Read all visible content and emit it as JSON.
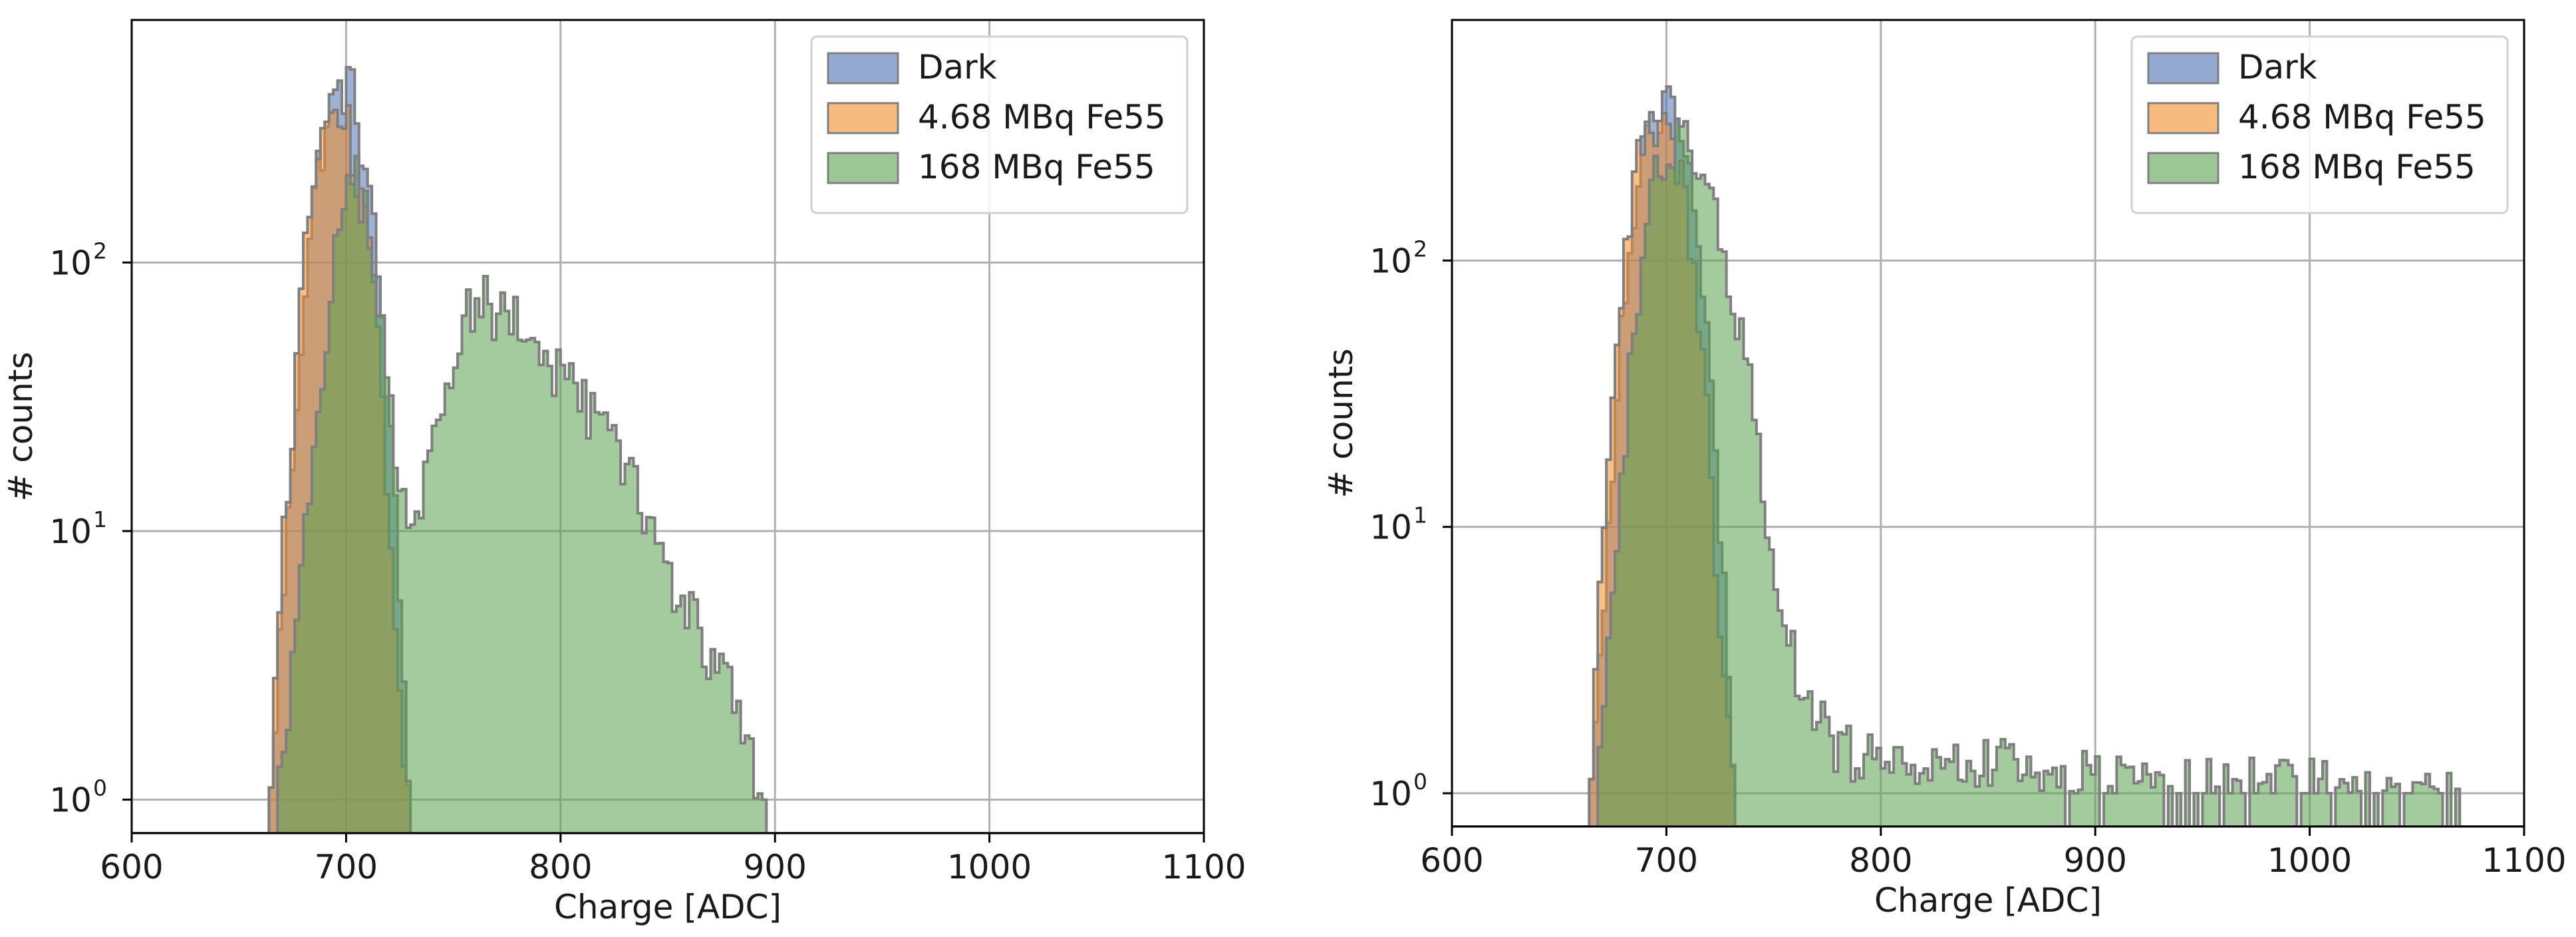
{
  "chart_data": [
    {
      "type": "histogram",
      "xlabel": "Charge [ADC]",
      "ylabel": "# counts",
      "yscale": "log",
      "xlim": [
        600,
        1100
      ],
      "ylim": [
        0.75,
        800
      ],
      "xticks": [
        "600",
        "700",
        "800",
        "900",
        "1000",
        "1100"
      ],
      "yticks": [
        {
          "base": "10",
          "exp": "0",
          "value": 1
        },
        {
          "base": "10",
          "exp": "1",
          "value": 10
        },
        {
          "base": "10",
          "exp": "2",
          "value": 100
        }
      ],
      "grid": true,
      "legend": "top-right",
      "series": [
        {
          "name": "Dark",
          "color": "#4c72b0",
          "points": [
            [
              665,
              1
            ],
            [
              668,
              3
            ],
            [
              672,
              8
            ],
            [
              676,
              25
            ],
            [
              680,
              70
            ],
            [
              684,
              150
            ],
            [
              688,
              260
            ],
            [
              692,
              360
            ],
            [
              696,
              420
            ],
            [
              700,
              470
            ],
            [
              703,
              430
            ],
            [
              706,
              330
            ],
            [
              710,
              200
            ],
            [
              714,
              110
            ],
            [
              718,
              50
            ],
            [
              722,
              16
            ],
            [
              726,
              4
            ],
            [
              730,
              1
            ]
          ]
        },
        {
          "name": "4.68 MBq Fe55",
          "color": "#f28e2b",
          "points": [
            [
              665,
              1
            ],
            [
              668,
              4
            ],
            [
              672,
              12
            ],
            [
              676,
              35
            ],
            [
              680,
              90
            ],
            [
              684,
              180
            ],
            [
              688,
              280
            ],
            [
              692,
              330
            ],
            [
              696,
              360
            ],
            [
              700,
              340
            ],
            [
              703,
              280
            ],
            [
              706,
              200
            ],
            [
              710,
              120
            ],
            [
              714,
              60
            ],
            [
              718,
              22
            ],
            [
              722,
              6
            ],
            [
              726,
              2
            ],
            [
              730,
              1
            ]
          ]
        },
        {
          "name": "168 MBq Fe55",
          "color": "#59a14f",
          "points": [
            [
              668,
              1
            ],
            [
              672,
              2
            ],
            [
              676,
              4
            ],
            [
              680,
              8
            ],
            [
              685,
              20
            ],
            [
              690,
              50
            ],
            [
              695,
              110
            ],
            [
              700,
              170
            ],
            [
              705,
              200
            ],
            [
              710,
              150
            ],
            [
              714,
              90
            ],
            [
              718,
              45
            ],
            [
              722,
              22
            ],
            [
              727,
              12
            ],
            [
              732,
              9
            ],
            [
              736,
              14
            ],
            [
              742,
              24
            ],
            [
              748,
              42
            ],
            [
              755,
              62
            ],
            [
              760,
              75
            ],
            [
              770,
              68
            ],
            [
              780,
              60
            ],
            [
              790,
              48
            ],
            [
              800,
              38
            ],
            [
              810,
              30
            ],
            [
              820,
              24
            ],
            [
              830,
              17
            ],
            [
              840,
              12
            ],
            [
              850,
              7
            ],
            [
              860,
              5
            ],
            [
              870,
              3.5
            ],
            [
              880,
              2.5
            ],
            [
              888,
              1.5
            ],
            [
              895,
              1
            ]
          ]
        }
      ]
    },
    {
      "type": "histogram",
      "xlabel": "Charge [ADC]",
      "ylabel": "# counts",
      "yscale": "log",
      "xlim": [
        600,
        1100
      ],
      "ylim": [
        0.75,
        800
      ],
      "xticks": [
        "600",
        "700",
        "800",
        "900",
        "1000",
        "1100"
      ],
      "yticks": [
        {
          "base": "10",
          "exp": "0",
          "value": 1
        },
        {
          "base": "10",
          "exp": "1",
          "value": 10
        },
        {
          "base": "10",
          "exp": "2",
          "value": 100
        }
      ],
      "grid": true,
      "legend": "top-right",
      "series": [
        {
          "name": "Dark",
          "color": "#4c72b0",
          "points": [
            [
              665,
              1
            ],
            [
              668,
              3
            ],
            [
              672,
              8
            ],
            [
              676,
              25
            ],
            [
              680,
              70
            ],
            [
              684,
              150
            ],
            [
              688,
              240
            ],
            [
              692,
              330
            ],
            [
              696,
              390
            ],
            [
              700,
              420
            ],
            [
              704,
              380
            ],
            [
              708,
              280
            ],
            [
              712,
              170
            ],
            [
              716,
              90
            ],
            [
              720,
              40
            ],
            [
              724,
              14
            ],
            [
              728,
              4
            ],
            [
              732,
              1
            ]
          ]
        },
        {
          "name": "4.68 MBq Fe55",
          "color": "#f28e2b",
          "points": [
            [
              665,
              1
            ],
            [
              668,
              4
            ],
            [
              672,
              12
            ],
            [
              676,
              35
            ],
            [
              680,
              90
            ],
            [
              684,
              170
            ],
            [
              688,
              260
            ],
            [
              692,
              300
            ],
            [
              696,
              320
            ],
            [
              700,
              300
            ],
            [
              704,
              250
            ],
            [
              708,
              180
            ],
            [
              712,
              110
            ],
            [
              716,
              55
            ],
            [
              720,
              20
            ],
            [
              724,
              6
            ],
            [
              728,
              2
            ],
            [
              732,
              1
            ]
          ]
        },
        {
          "name": "168 MBq Fe55",
          "color": "#59a14f",
          "points": [
            [
              668,
              1
            ],
            [
              672,
              3
            ],
            [
              676,
              8
            ],
            [
              680,
              20
            ],
            [
              685,
              55
            ],
            [
              690,
              120
            ],
            [
              695,
              200
            ],
            [
              700,
              260
            ],
            [
              705,
              290
            ],
            [
              710,
              270
            ],
            [
              715,
              220
            ],
            [
              720,
              170
            ],
            [
              725,
              120
            ],
            [
              730,
              80
            ],
            [
              735,
              50
            ],
            [
              740,
              30
            ],
            [
              745,
              16
            ],
            [
              750,
              8
            ],
            [
              755,
              5
            ],
            [
              760,
              3
            ],
            [
              765,
              2
            ],
            [
              770,
              2
            ],
            [
              780,
              1.5
            ],
            [
              800,
              1.3
            ],
            [
              820,
              1.3
            ],
            [
              850,
              1.3
            ],
            [
              880,
              1.2
            ],
            [
              920,
              1.1
            ],
            [
              960,
              1.1
            ],
            [
              1000,
              1.1
            ],
            [
              1040,
              1
            ],
            [
              1070,
              1
            ]
          ]
        }
      ]
    }
  ]
}
